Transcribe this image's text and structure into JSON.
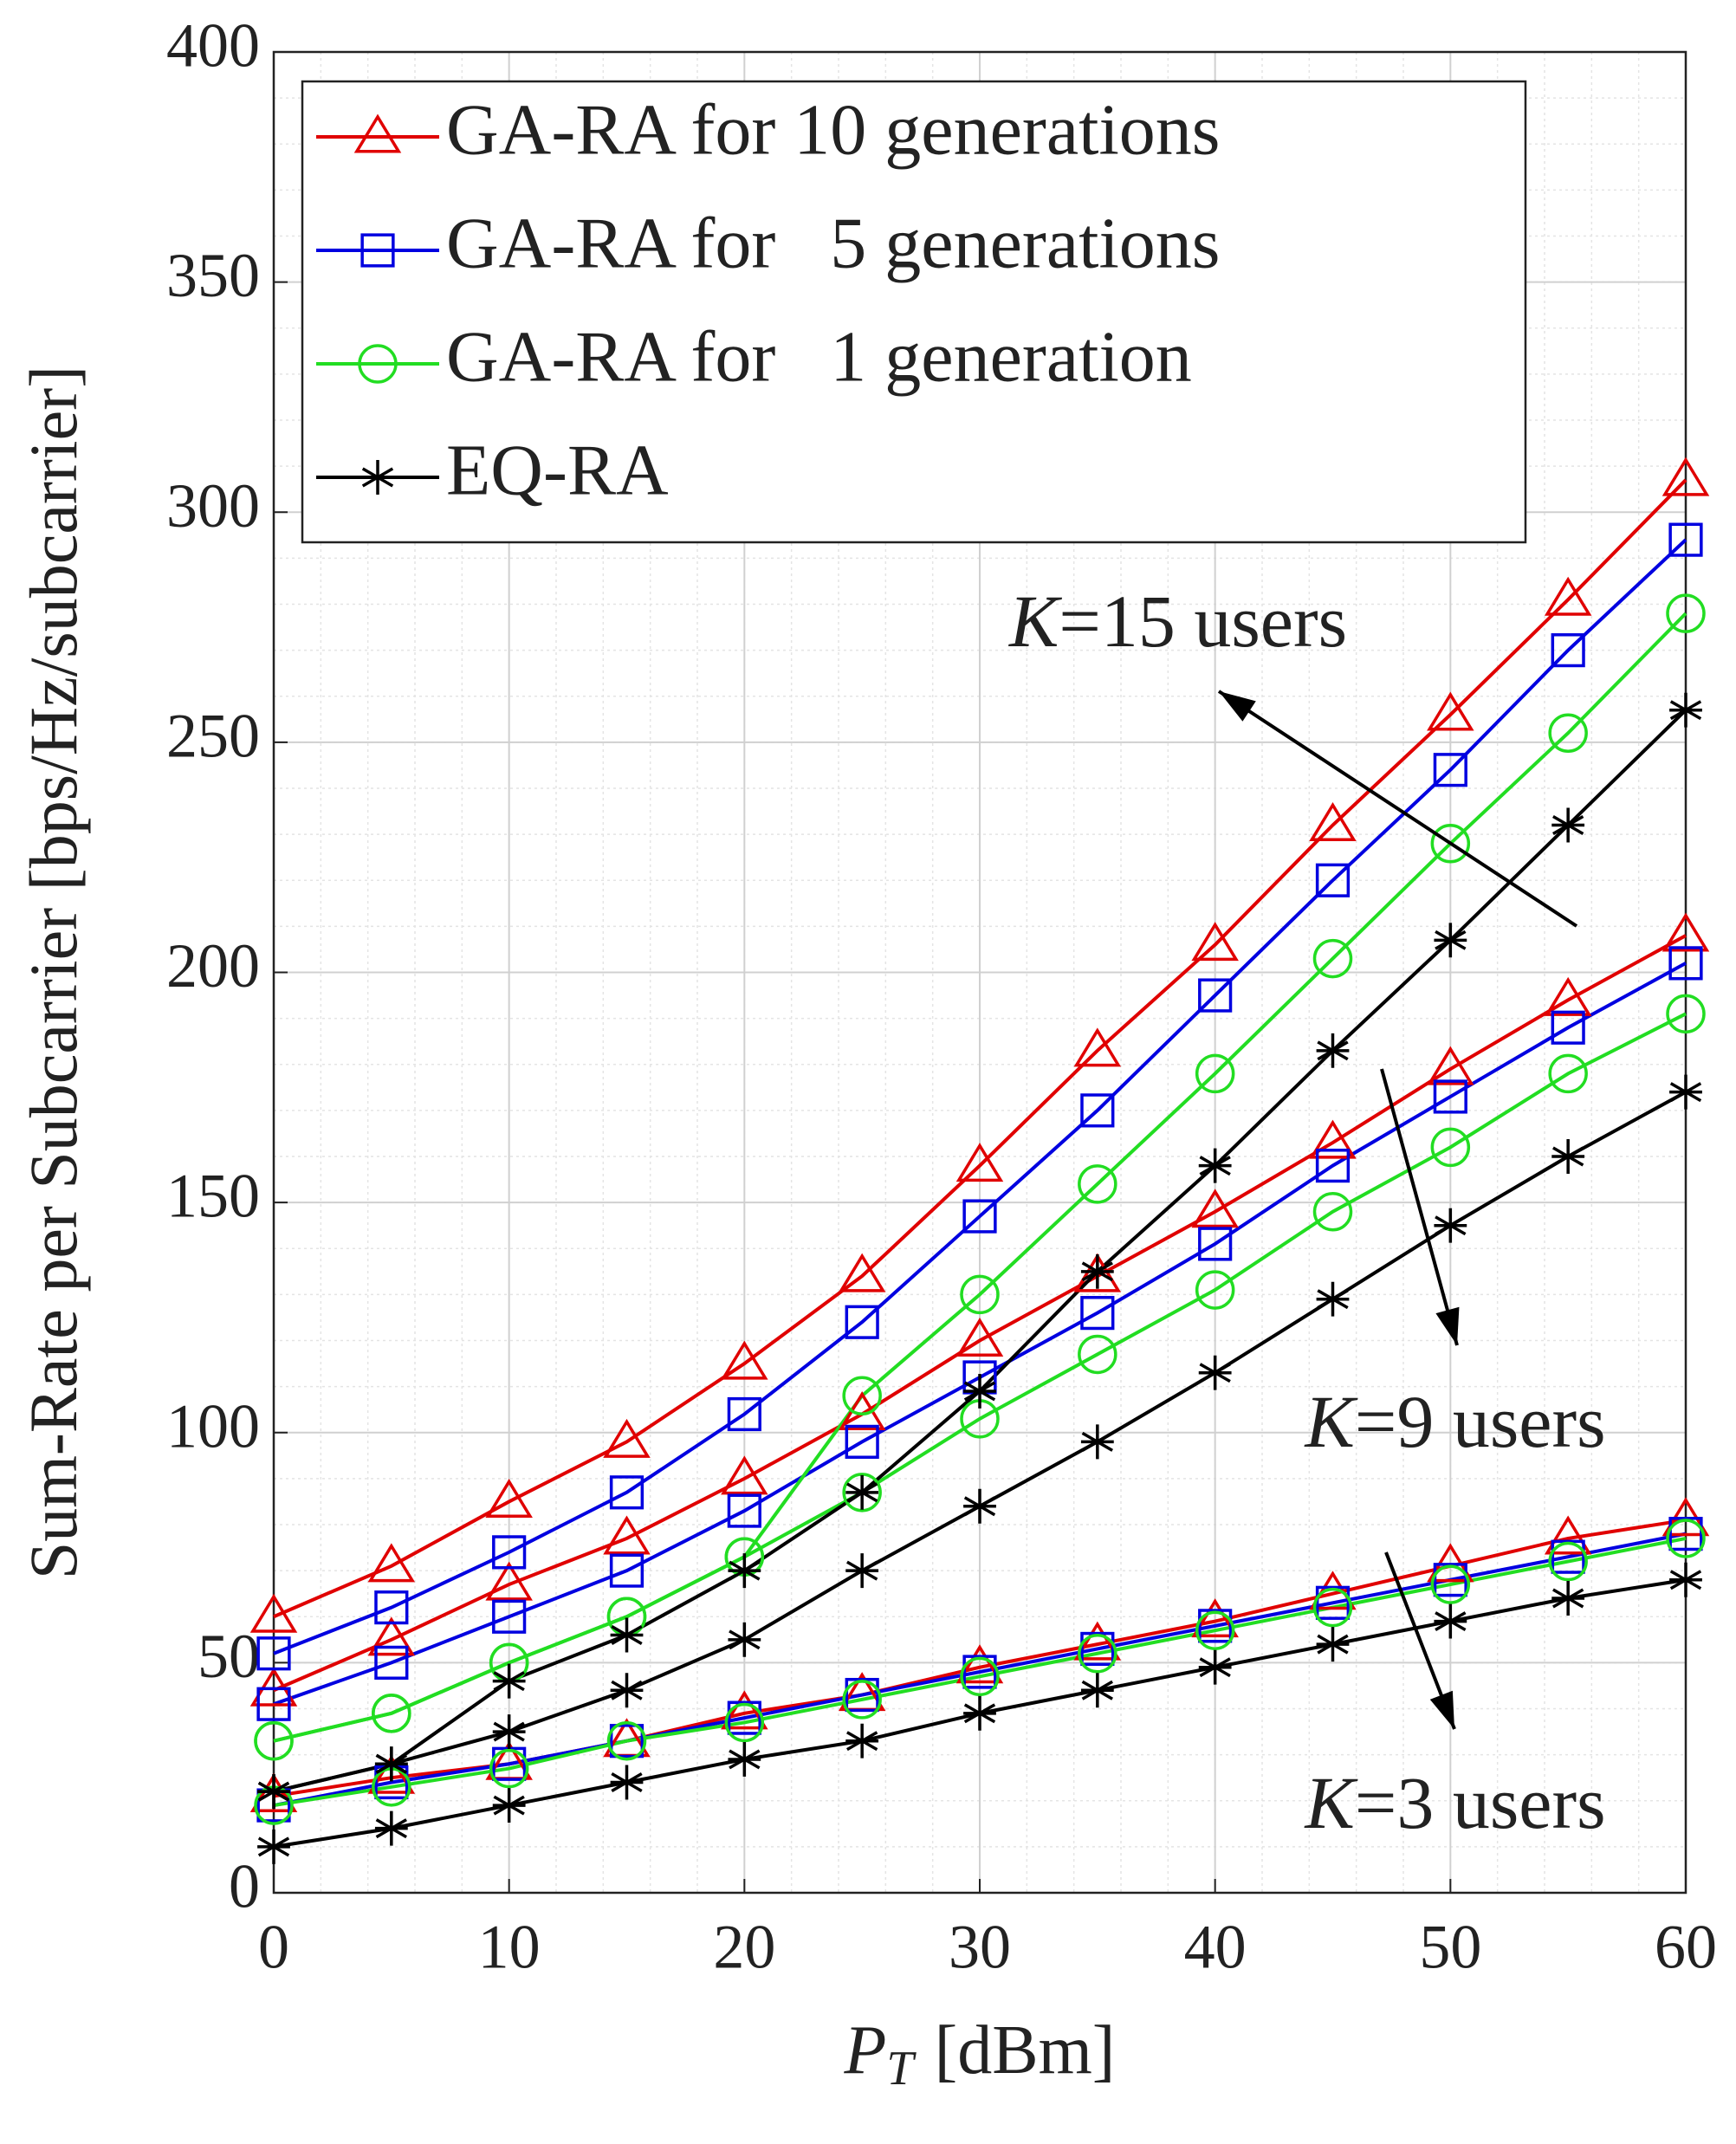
{
  "chart_data": {
    "type": "line",
    "xlabel": {
      "symbol": "P",
      "subscript": "T",
      "unit": "[dBm]"
    },
    "ylabel": "Sum-Rate per Subcarrier [bps/Hz/subcarrier]",
    "x": [
      0,
      5,
      10,
      15,
      20,
      25,
      30,
      35,
      40,
      45,
      50,
      55,
      60
    ],
    "xlim": [
      0,
      60
    ],
    "xticks": [
      0,
      10,
      20,
      30,
      40,
      50,
      60
    ],
    "ylim": [
      0,
      400
    ],
    "yticks": [
      0,
      50,
      100,
      150,
      200,
      250,
      300,
      350,
      400
    ],
    "xminorticks": [
      0,
      2,
      4,
      6,
      8,
      10,
      12,
      14,
      16,
      18,
      20,
      22,
      24,
      26,
      28,
      30,
      32,
      34,
      36,
      38,
      40,
      42,
      44,
      46,
      48,
      50,
      52,
      54,
      56,
      58,
      60
    ],
    "yminorticks": [
      0,
      10,
      20,
      30,
      40,
      50,
      60,
      70,
      80,
      90,
      100,
      110,
      120,
      130,
      140,
      150,
      160,
      170,
      180,
      190,
      200,
      210,
      220,
      230,
      240,
      250,
      260,
      270,
      280,
      290,
      300,
      310,
      320,
      330,
      340,
      350,
      360,
      370,
      380,
      390,
      400
    ],
    "grid": true,
    "legend": "upper left",
    "series": [
      {
        "name": "GA-RA for 10 generations",
        "color": "#e00000",
        "marker": "triangle",
        "values": [
          [
            60,
            71,
            85,
            98,
            115,
            134,
            158,
            183,
            206,
            232,
            256,
            281,
            307
          ],
          [
            44,
            55,
            67,
            77,
            90,
            104,
            120,
            134,
            148,
            163,
            179,
            194,
            208
          ],
          [
            21,
            25,
            28,
            33,
            39,
            43,
            49,
            54,
            59,
            65,
            71,
            77,
            81
          ]
        ]
      },
      {
        "name": "GA-RA for   5 generations",
        "color": "#0000e0",
        "marker": "square",
        "values": [
          [
            52,
            62,
            74,
            87,
            104,
            124,
            147,
            170,
            195,
            220,
            244,
            270,
            294
          ],
          [
            41,
            50,
            60,
            70,
            83,
            98,
            112,
            126,
            141,
            158,
            173,
            188,
            202
          ],
          [
            19,
            24,
            28,
            33,
            38,
            43,
            48,
            53,
            58,
            63,
            68,
            73,
            78
          ]
        ]
      },
      {
        "name": "GA-RA for   1 generation",
        "color": "#22dd22",
        "marker": "circle",
        "values": [
          [
            33,
            39,
            50,
            60,
            73,
            108,
            130,
            154,
            178,
            203,
            228,
            252,
            278
          ],
          [
            33,
            39,
            50,
            60,
            73,
            87,
            103,
            117,
            131,
            148,
            162,
            178,
            191
          ],
          [
            19,
            23,
            27,
            33,
            37,
            42,
            47,
            52,
            57,
            62,
            67,
            72,
            77
          ]
        ]
      },
      {
        "name": "EQ-RA",
        "color": "#000000",
        "marker": "asterisk",
        "values": [
          [
            22,
            28,
            46,
            56,
            70,
            87,
            109,
            135,
            158,
            183,
            207,
            232,
            257
          ],
          [
            22,
            28,
            35,
            44,
            55,
            70,
            84,
            98,
            113,
            129,
            145,
            160,
            174
          ],
          [
            10,
            14,
            19,
            24,
            29,
            33,
            39,
            44,
            49,
            54,
            59,
            64,
            68
          ]
        ]
      }
    ],
    "annotations": [
      {
        "italic": "K",
        "text": "=15 users"
      },
      {
        "italic": "K",
        "text": "=9 users"
      },
      {
        "italic": "K",
        "text": "=3 users"
      }
    ]
  }
}
